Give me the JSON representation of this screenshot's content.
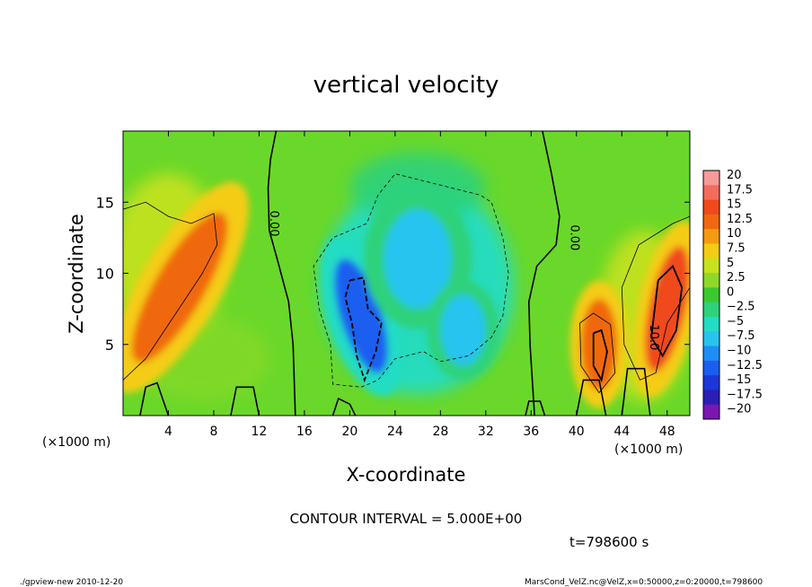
{
  "chart_data": {
    "type": "heatmap",
    "title": "vertical velocity",
    "xlabel": "X-coordinate",
    "ylabel": "Z-coordinate",
    "x_unit_left": "(×1000 m)",
    "x_unit_right": "(×1000 m)",
    "xlim": [
      0,
      50
    ],
    "ylim": [
      0,
      20
    ],
    "x_ticks": [
      4,
      8,
      12,
      16,
      20,
      24,
      28,
      32,
      36,
      40,
      44,
      48
    ],
    "y_ticks": [
      5,
      10,
      15
    ],
    "contour_interval_text": "CONTOUR INTERVAL = 5.000E+00",
    "contour_labels": [
      {
        "text": "0.00",
        "x": 13,
        "z": 13.5
      },
      {
        "text": "0.00",
        "x": 39.5,
        "z": 12.5
      },
      {
        "text": "10.0",
        "x": 46.5,
        "z": 5.5
      }
    ],
    "colorbar": {
      "levels": [
        20,
        17.5,
        15,
        12.5,
        10,
        7.5,
        5,
        2.5,
        0,
        -2.5,
        -5,
        -7.5,
        -10,
        -12.5,
        -15,
        -17.5,
        -20
      ],
      "labels": [
        "20",
        "17.5",
        "15",
        "12.5",
        "10",
        "7.5",
        "5",
        "2.5",
        "0",
        "−2.5",
        "−5",
        "−7.5",
        "−10",
        "−12.5",
        "−15",
        "−17.5",
        "−20"
      ],
      "colors": [
        "#f79a9a",
        "#f36c5c",
        "#f04a1c",
        "#f06810",
        "#f39c10",
        "#f4cc12",
        "#c8e21e",
        "#8ed82a",
        "#3cc830",
        "#2ed27a",
        "#22dcc4",
        "#28c4ee",
        "#1e8ef4",
        "#1a5ef0",
        "#1c36d8",
        "#2a1eb4",
        "#7a16b2"
      ]
    },
    "features": [
      {
        "kind": "updraft",
        "x": 5,
        "z": 9,
        "peak": 12.5
      },
      {
        "kind": "updraft",
        "x": 42,
        "z": 5,
        "peak": 12.5
      },
      {
        "kind": "updraft",
        "x": 48,
        "z": 7.5,
        "peak": 15
      },
      {
        "kind": "downdraft",
        "x": 21,
        "z": 7,
        "peak": -12.5
      },
      {
        "kind": "downdraft",
        "x": 26,
        "z": 11,
        "peak": -7.5
      },
      {
        "kind": "downdraft",
        "x": 30,
        "z": 6,
        "peak": -7.5
      }
    ]
  },
  "time_label": "t=798600 s",
  "footer": {
    "left": "./gpview-new 2010-12-20",
    "right": "MarsCond_VelZ.nc@VelZ,x=0:50000,z=0:20000,t=798600"
  }
}
